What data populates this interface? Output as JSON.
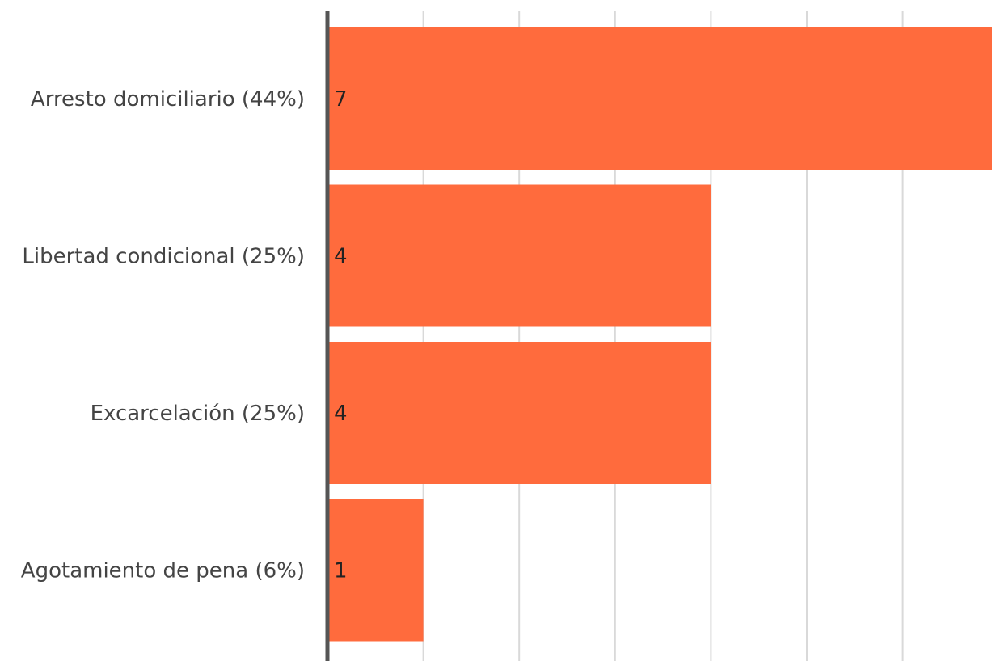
{
  "chart_data": {
    "type": "bar",
    "orientation": "horizontal",
    "categories": [
      "Arresto domiciliario (44%)",
      "Libertad condicional (25%)",
      "Excarcelación (25%)",
      "Agotamiento de pena (6%)"
    ],
    "values": [
      7,
      4,
      4,
      1
    ],
    "data_labels": [
      "7",
      "4",
      "4",
      "1"
    ],
    "title": "",
    "xlabel": "",
    "ylabel": "",
    "xlim": [
      0,
      7
    ],
    "grid": true,
    "legend": "none",
    "bar_color": "#FF6B3D",
    "axis_color": "#555555",
    "grid_color": "#D9D9D9"
  }
}
